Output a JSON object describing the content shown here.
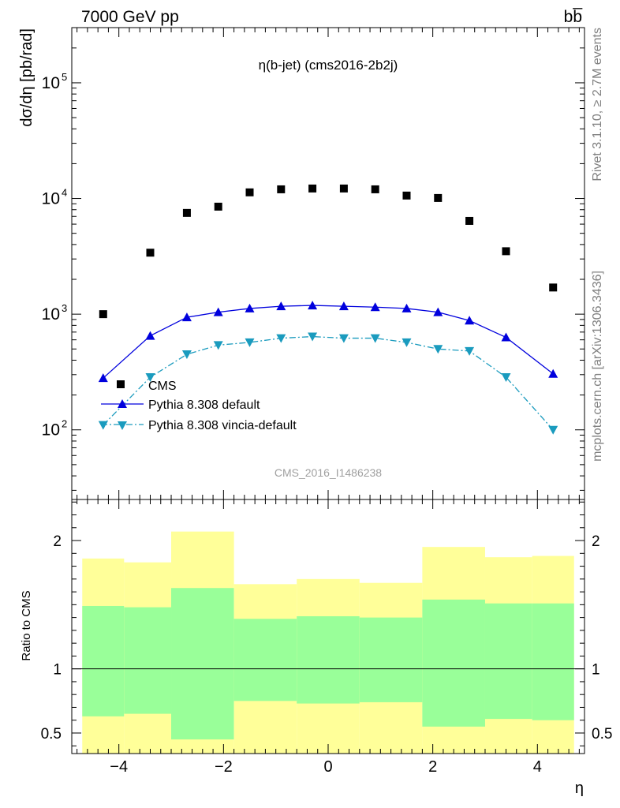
{
  "chart_data": [
    {
      "type": "scatter",
      "header_left": "7000 GeV pp",
      "header_right": "bb̅",
      "title": "η(b-jet) (cms2016-2b2j)",
      "ylabel": "dσ/dη [pb/rad]",
      "yscale": "log",
      "ylim": [
        25,
        300000
      ],
      "xlim": [
        -4.9,
        4.9
      ],
      "y_ticks": [
        {
          "value": 100,
          "label": "10",
          "exp": "2"
        },
        {
          "value": 1000,
          "label": "10",
          "exp": "3"
        },
        {
          "value": 10000,
          "label": "10",
          "exp": "4"
        },
        {
          "value": 100000,
          "label": "10",
          "exp": "5"
        }
      ],
      "watermark": "CMS_2016_I1486238",
      "x": [
        -4.3,
        -3.4,
        -2.7,
        -2.1,
        -1.5,
        -0.9,
        -0.3,
        0.3,
        0.9,
        1.5,
        2.1,
        2.7,
        3.4,
        4.3
      ],
      "series": [
        {
          "name": "CMS",
          "color": "#000000",
          "marker": "square",
          "values": [
            1000,
            3400,
            7500,
            8500,
            11300,
            12000,
            12200,
            12200,
            12000,
            10600,
            10100,
            6400,
            3500,
            1700
          ]
        },
        {
          "name": "Pythia 8.308 default",
          "color": "#0000dd",
          "marker": "triangle-up",
          "line": "solid",
          "values": [
            280,
            650,
            940,
            1040,
            1120,
            1170,
            1190,
            1170,
            1150,
            1120,
            1040,
            880,
            630,
            305
          ]
        },
        {
          "name": "Pythia 8.308 vincia-default",
          "color": "#1a9bbe",
          "marker": "triangle-down",
          "line": "dashdot",
          "values": [
            110,
            285,
            450,
            540,
            570,
            620,
            640,
            620,
            620,
            570,
            500,
            480,
            285,
            100
          ]
        }
      ]
    },
    {
      "type": "area",
      "ylabel": "Ratio to CMS",
      "xlabel": "η",
      "ylim": [
        0.34,
        2.32
      ],
      "xlim": [
        -4.9,
        4.9
      ],
      "x_ticks": [
        {
          "value": -4,
          "label": "−4"
        },
        {
          "value": -2,
          "label": "−2"
        },
        {
          "value": 0,
          "label": "0"
        },
        {
          "value": 2,
          "label": "2"
        },
        {
          "value": 4,
          "label": "4"
        }
      ],
      "y_ticks": [
        {
          "value": 0.5,
          "label": "0.5"
        },
        {
          "value": 1,
          "label": "1"
        },
        {
          "value": 2,
          "label": "2"
        }
      ],
      "bins": [
        [
          -4.7,
          -3.9
        ],
        [
          -3.9,
          -3.0
        ],
        [
          -3.0,
          -1.8
        ],
        [
          -1.8,
          -0.6
        ],
        [
          -0.6,
          0.6
        ],
        [
          0.6,
          1.8
        ],
        [
          1.8,
          3.0
        ],
        [
          3.0,
          3.9
        ],
        [
          3.9,
          4.7
        ]
      ],
      "band_outer": [
        [
          0.34,
          1.86
        ],
        [
          0.34,
          1.83
        ],
        [
          0.34,
          2.07
        ],
        [
          0.34,
          1.66
        ],
        [
          0.34,
          1.7
        ],
        [
          0.34,
          1.67
        ],
        [
          0.34,
          1.95
        ],
        [
          0.34,
          1.87
        ],
        [
          0.34,
          1.88
        ]
      ],
      "band_inner": [
        [
          0.63,
          1.49
        ],
        [
          0.65,
          1.48
        ],
        [
          0.45,
          1.63
        ],
        [
          0.75,
          1.39
        ],
        [
          0.73,
          1.41
        ],
        [
          0.74,
          1.4
        ],
        [
          0.55,
          1.54
        ],
        [
          0.61,
          1.51
        ],
        [
          0.6,
          1.51
        ]
      ],
      "colors": {
        "outer": "#ffff99",
        "inner": "#99ff99"
      }
    }
  ],
  "side_labels": {
    "rivet": "Rivet 3.1.10, ≥ 2.7M events",
    "mcplots": "mcplots.cern.ch [arXiv:1306.3436]"
  }
}
